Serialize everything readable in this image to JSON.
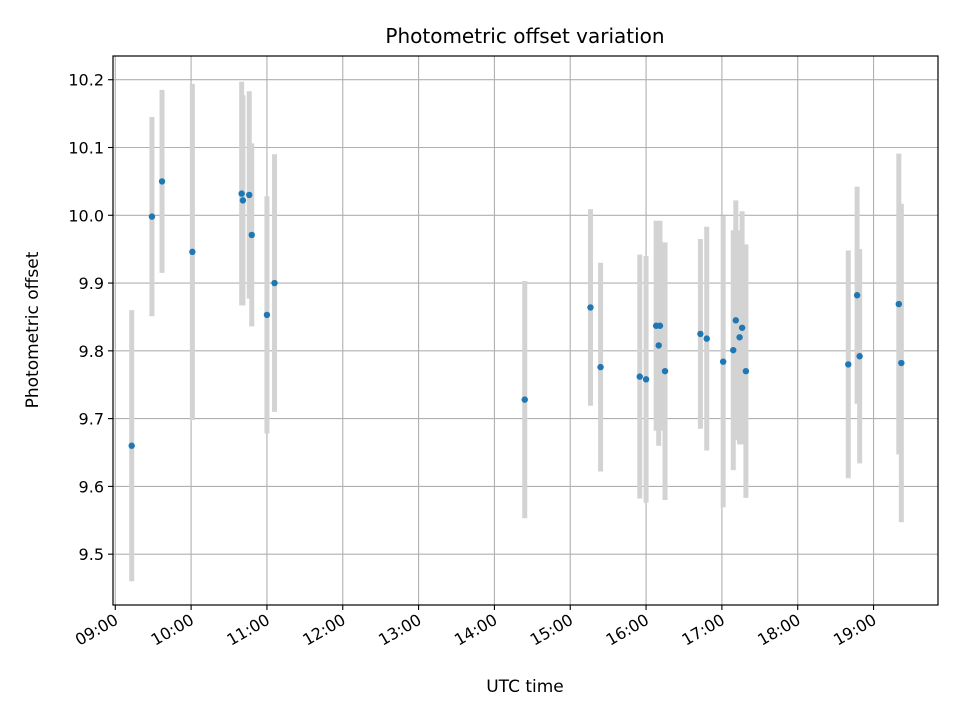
{
  "chart_data": {
    "type": "scatter",
    "title": "Photometric offset variation",
    "xlabel": "UTC time",
    "ylabel": "Photometric offset",
    "x_tick_labels": [
      "09:00",
      "10:00",
      "11:00",
      "12:00",
      "13:00",
      "14:00",
      "15:00",
      "16:00",
      "17:00",
      "18:00",
      "19:00"
    ],
    "x_ticks_hours": [
      9,
      10,
      11,
      12,
      13,
      14,
      15,
      16,
      17,
      18,
      19
    ],
    "xlim_hours": [
      8.97,
      19.85
    ],
    "y_tick_labels": [
      "9.5",
      "9.6",
      "9.7",
      "9.8",
      "9.9",
      "10.0",
      "10.1",
      "10.2"
    ],
    "y_ticks": [
      9.5,
      9.6,
      9.7,
      9.8,
      9.9,
      10.0,
      10.1,
      10.2
    ],
    "ylim": [
      9.425,
      10.235
    ],
    "grid": true,
    "colors": {
      "point": "#1f77b4",
      "errorbar": "#d3d3d3",
      "grid": "#b0b0b0"
    },
    "series": [
      {
        "x_time": [
          "09:13",
          "09:29",
          "09:37",
          "10:01",
          "10:46",
          "10:40",
          "10:41",
          "10:48",
          "11:00",
          "11:06",
          "14:24",
          "15:16",
          "15:24",
          "15:55",
          "16:00",
          "16:08",
          "16:11",
          "16:10",
          "16:15",
          "16:43",
          "16:48",
          "17:01",
          "17:09",
          "17:11",
          "17:14",
          "17:16",
          "17:19",
          "18:40",
          "18:47",
          "18:49",
          "19:20",
          "19:22"
        ],
        "y": [
          9.66,
          9.998,
          10.05,
          9.946,
          10.03,
          10.032,
          10.022,
          9.971,
          9.853,
          9.9,
          9.728,
          9.864,
          9.776,
          9.762,
          9.758,
          9.837,
          9.837,
          9.808,
          9.77,
          9.825,
          9.818,
          9.784,
          9.801,
          9.845,
          9.82,
          9.834,
          9.77,
          9.78,
          9.882,
          9.792,
          9.869,
          9.782
        ],
        "err": [
          0.2,
          0.147,
          0.135,
          0.248,
          0.153,
          0.165,
          0.155,
          0.135,
          0.175,
          0.19,
          0.175,
          0.145,
          0.154,
          0.18,
          0.182,
          0.155,
          0.155,
          0.148,
          0.19,
          0.14,
          0.165,
          0.215,
          0.177,
          0.177,
          0.158,
          0.172,
          0.187,
          0.168,
          0.16,
          0.158,
          0.222,
          0.235
        ]
      }
    ]
  }
}
